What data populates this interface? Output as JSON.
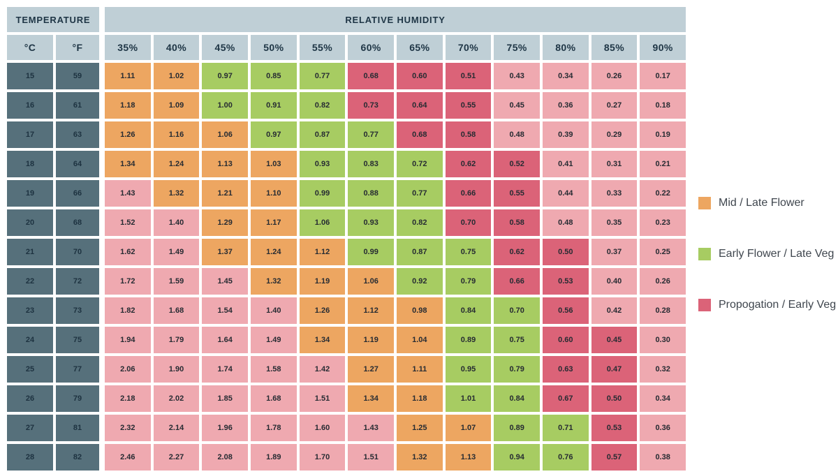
{
  "table": {
    "temperature_label": "TEMPERATURE",
    "humidity_label": "RELATIVE HUMIDITY",
    "celsius_label": "°C",
    "fahrenheit_label": "°F"
  },
  "colors": {
    "background": "#FFFFFF",
    "header_bg": "#BFCFD6",
    "temp_cell_bg": "#56707B",
    "header_text": "#1E3545",
    "cell_text": "#262B32",
    "zone_colors": {
      "O": "#EDA661",
      "G": "#A7CC62",
      "R": "#DB6378",
      "P": "#EFA9B0"
    }
  },
  "legend": {
    "items": [
      {
        "label": "Mid / Late Flower",
        "zone": "O",
        "swatch": "#EDA661"
      },
      {
        "label": "Early Flower / Late Veg",
        "zone": "G",
        "swatch": "#A7CC62"
      },
      {
        "label": "Propogation / Early Veg",
        "zone": "R",
        "swatch": "#DB6378"
      }
    ]
  },
  "chart_data": {
    "type": "heatmap",
    "x_label": "RELATIVE HUMIDITY",
    "x_categories": [
      "35%",
      "40%",
      "45%",
      "50%",
      "55%",
      "60%",
      "65%",
      "70%",
      "75%",
      "80%",
      "85%",
      "90%"
    ],
    "row_label": "TEMPERATURE",
    "row_units": [
      "°C",
      "°F"
    ],
    "legend_entries": [
      "Mid / Late Flower",
      "Early Flower / Late Veg",
      "Propogation / Early Veg"
    ],
    "zone_key": {
      "O": "Mid / Late Flower",
      "G": "Early Flower / Late Veg",
      "R": "Propogation / Early Veg",
      "P": "out-of-range"
    },
    "rows": [
      {
        "celsius": "15",
        "fahrenheit": "59",
        "values": [
          "1.11",
          "1.02",
          "0.97",
          "0.85",
          "0.77",
          "0.68",
          "0.60",
          "0.51",
          "0.43",
          "0.34",
          "0.26",
          "0.17"
        ],
        "zones": [
          "O",
          "O",
          "G",
          "G",
          "G",
          "R",
          "R",
          "R",
          "P",
          "P",
          "P",
          "P"
        ]
      },
      {
        "celsius": "16",
        "fahrenheit": "61",
        "values": [
          "1.18",
          "1.09",
          "1.00",
          "0.91",
          "0.82",
          "0.73",
          "0.64",
          "0.55",
          "0.45",
          "0.36",
          "0.27",
          "0.18"
        ],
        "zones": [
          "O",
          "O",
          "G",
          "G",
          "G",
          "R",
          "R",
          "R",
          "P",
          "P",
          "P",
          "P"
        ]
      },
      {
        "celsius": "17",
        "fahrenheit": "63",
        "values": [
          "1.26",
          "1.16",
          "1.06",
          "0.97",
          "0.87",
          "0.77",
          "0.68",
          "0.58",
          "0.48",
          "0.39",
          "0.29",
          "0.19"
        ],
        "zones": [
          "O",
          "O",
          "O",
          "G",
          "G",
          "G",
          "R",
          "R",
          "P",
          "P",
          "P",
          "P"
        ]
      },
      {
        "celsius": "18",
        "fahrenheit": "64",
        "values": [
          "1.34",
          "1.24",
          "1.13",
          "1.03",
          "0.93",
          "0.83",
          "0.72",
          "0.62",
          "0.52",
          "0.41",
          "0.31",
          "0.21"
        ],
        "zones": [
          "O",
          "O",
          "O",
          "O",
          "G",
          "G",
          "G",
          "R",
          "R",
          "P",
          "P",
          "P"
        ]
      },
      {
        "celsius": "19",
        "fahrenheit": "66",
        "values": [
          "1.43",
          "1.32",
          "1.21",
          "1.10",
          "0.99",
          "0.88",
          "0.77",
          "0.66",
          "0.55",
          "0.44",
          "0.33",
          "0.22"
        ],
        "zones": [
          "P",
          "O",
          "O",
          "O",
          "G",
          "G",
          "G",
          "R",
          "R",
          "P",
          "P",
          "P"
        ]
      },
      {
        "celsius": "20",
        "fahrenheit": "68",
        "values": [
          "1.52",
          "1.40",
          "1.29",
          "1.17",
          "1.06",
          "0.93",
          "0.82",
          "0.70",
          "0.58",
          "0.48",
          "0.35",
          "0.23"
        ],
        "zones": [
          "P",
          "P",
          "O",
          "O",
          "G",
          "G",
          "G",
          "R",
          "R",
          "P",
          "P",
          "P"
        ]
      },
      {
        "celsius": "21",
        "fahrenheit": "70",
        "values": [
          "1.62",
          "1.49",
          "1.37",
          "1.24",
          "1.12",
          "0.99",
          "0.87",
          "0.75",
          "0.62",
          "0.50",
          "0.37",
          "0.25"
        ],
        "zones": [
          "P",
          "P",
          "O",
          "O",
          "O",
          "G",
          "G",
          "G",
          "R",
          "R",
          "P",
          "P"
        ]
      },
      {
        "celsius": "22",
        "fahrenheit": "72",
        "values": [
          "1.72",
          "1.59",
          "1.45",
          "1.32",
          "1.19",
          "1.06",
          "0.92",
          "0.79",
          "0.66",
          "0.53",
          "0.40",
          "0.26"
        ],
        "zones": [
          "P",
          "P",
          "P",
          "O",
          "O",
          "O",
          "G",
          "G",
          "R",
          "R",
          "P",
          "P"
        ]
      },
      {
        "celsius": "23",
        "fahrenheit": "73",
        "values": [
          "1.82",
          "1.68",
          "1.54",
          "1.40",
          "1.26",
          "1.12",
          "0.98",
          "0.84",
          "0.70",
          "0.56",
          "0.42",
          "0.28"
        ],
        "zones": [
          "P",
          "P",
          "P",
          "P",
          "O",
          "O",
          "O",
          "G",
          "G",
          "R",
          "P",
          "P"
        ]
      },
      {
        "celsius": "24",
        "fahrenheit": "75",
        "values": [
          "1.94",
          "1.79",
          "1.64",
          "1.49",
          "1.34",
          "1.19",
          "1.04",
          "0.89",
          "0.75",
          "0.60",
          "0.45",
          "0.30"
        ],
        "zones": [
          "P",
          "P",
          "P",
          "P",
          "O",
          "O",
          "O",
          "G",
          "G",
          "R",
          "R",
          "P"
        ]
      },
      {
        "celsius": "25",
        "fahrenheit": "77",
        "values": [
          "2.06",
          "1.90",
          "1.74",
          "1.58",
          "1.42",
          "1.27",
          "1.11",
          "0.95",
          "0.79",
          "0.63",
          "0.47",
          "0.32"
        ],
        "zones": [
          "P",
          "P",
          "P",
          "P",
          "P",
          "O",
          "O",
          "G",
          "G",
          "R",
          "R",
          "P"
        ]
      },
      {
        "celsius": "26",
        "fahrenheit": "79",
        "values": [
          "2.18",
          "2.02",
          "1.85",
          "1.68",
          "1.51",
          "1.34",
          "1.18",
          "1.01",
          "0.84",
          "0.67",
          "0.50",
          "0.34"
        ],
        "zones": [
          "P",
          "P",
          "P",
          "P",
          "P",
          "O",
          "O",
          "G",
          "G",
          "R",
          "R",
          "P"
        ]
      },
      {
        "celsius": "27",
        "fahrenheit": "81",
        "values": [
          "2.32",
          "2.14",
          "1.96",
          "1.78",
          "1.60",
          "1.43",
          "1.25",
          "1.07",
          "0.89",
          "0.71",
          "0.53",
          "0.36"
        ],
        "zones": [
          "P",
          "P",
          "P",
          "P",
          "P",
          "P",
          "O",
          "O",
          "G",
          "G",
          "R",
          "P"
        ]
      },
      {
        "celsius": "28",
        "fahrenheit": "82",
        "values": [
          "2.46",
          "2.27",
          "2.08",
          "1.89",
          "1.70",
          "1.51",
          "1.32",
          "1.13",
          "0.94",
          "0.76",
          "0.57",
          "0.38"
        ],
        "zones": [
          "P",
          "P",
          "P",
          "P",
          "P",
          "P",
          "O",
          "O",
          "G",
          "G",
          "R",
          "P"
        ]
      }
    ]
  }
}
